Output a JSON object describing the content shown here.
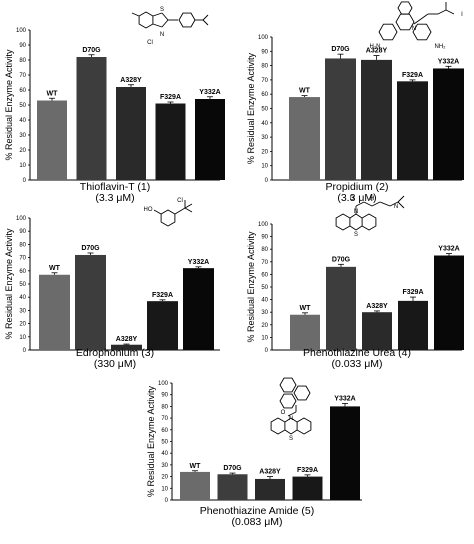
{
  "chart_data": [
    {
      "type": "bar",
      "caption": "Thioflavin-T (1)",
      "concentration": "(3.3 μM)",
      "ylabel": "% Residual Enzyme Activity",
      "ylim": [
        0,
        100
      ],
      "yticks": [
        0,
        10,
        20,
        30,
        40,
        50,
        60,
        70,
        80,
        90,
        100
      ],
      "categories": [
        "WT",
        "D70G",
        "A328Y",
        "F329A",
        "Y332A"
      ],
      "values": [
        53,
        82,
        62,
        51,
        54
      ],
      "errors": [
        1.5,
        1.5,
        1.5,
        1,
        1.5
      ],
      "colors": [
        "#6b6b6b",
        "#3d3d3d",
        "#2a2a2a",
        "#181818",
        "#080808"
      ]
    },
    {
      "type": "bar",
      "caption": "Propidium (2)",
      "concentration": "(3.3 μM)",
      "ylabel": "% Residual Enzyme Activity",
      "ylim": [
        0,
        100
      ],
      "yticks": [
        0,
        10,
        20,
        30,
        40,
        50,
        60,
        70,
        80,
        90,
        100
      ],
      "categories": [
        "WT",
        "D70G",
        "A328Y",
        "F329A",
        "Y332A"
      ],
      "values": [
        58,
        85,
        84,
        69,
        78
      ],
      "errors": [
        1,
        3,
        3,
        1,
        1.5
      ],
      "colors": [
        "#6b6b6b",
        "#3d3d3d",
        "#2a2a2a",
        "#181818",
        "#080808"
      ]
    },
    {
      "type": "bar",
      "caption": "Edrophonium (3)",
      "concentration": "(330 μM)",
      "ylabel": "% Residual Enzyme Activity",
      "ylim": [
        0,
        100
      ],
      "yticks": [
        0,
        10,
        20,
        30,
        40,
        50,
        60,
        70,
        80,
        90,
        100
      ],
      "categories": [
        "WT",
        "D70G",
        "A328Y",
        "F329A",
        "Y332A"
      ],
      "values": [
        57,
        72,
        4,
        37,
        62
      ],
      "errors": [
        1.5,
        1.5,
        0.5,
        1,
        1
      ],
      "colors": [
        "#6b6b6b",
        "#3d3d3d",
        "#2a2a2a",
        "#181818",
        "#080808"
      ]
    },
    {
      "type": "bar",
      "caption": "Phenothiazine Urea (4)",
      "concentration": "(0.033 μM)",
      "ylabel": "% Residual Enzyme Activity",
      "ylim": [
        0,
        100
      ],
      "yticks": [
        0,
        10,
        20,
        30,
        40,
        50,
        60,
        70,
        80,
        90,
        100
      ],
      "categories": [
        "WT",
        "D70G",
        "A328Y",
        "F329A",
        "Y332A"
      ],
      "values": [
        28,
        66,
        30,
        39,
        75
      ],
      "errors": [
        1.5,
        2,
        1,
        3,
        1.5
      ],
      "colors": [
        "#6b6b6b",
        "#3d3d3d",
        "#2a2a2a",
        "#181818",
        "#080808"
      ]
    },
    {
      "type": "bar",
      "caption": "Phenothiazine Amide (5)",
      "concentration": "(0.083 μM)",
      "ylabel": "% Residual Enzyme Activity",
      "ylim": [
        0,
        100
      ],
      "yticks": [
        0,
        10,
        20,
        30,
        40,
        50,
        60,
        70,
        80,
        90,
        100
      ],
      "categories": [
        "WT",
        "D70G",
        "A328Y",
        "F329A",
        "Y332A"
      ],
      "values": [
        24,
        22,
        18,
        20,
        80
      ],
      "errors": [
        1,
        1,
        2,
        1.5,
        2.5
      ],
      "colors": [
        "#6b6b6b",
        "#3d3d3d",
        "#2a2a2a",
        "#181818",
        "#080808"
      ]
    }
  ],
  "structures": [
    {
      "labels": [
        "N",
        "S",
        "Cl"
      ]
    },
    {
      "labels": [
        "H₂N",
        "N",
        "NH₂",
        "I"
      ]
    },
    {
      "labels": [
        "HO",
        "Cl"
      ]
    },
    {
      "labels": [
        "N",
        "O",
        "N",
        "H",
        "S"
      ]
    },
    {
      "labels": [
        "O",
        "N",
        "S"
      ]
    }
  ]
}
